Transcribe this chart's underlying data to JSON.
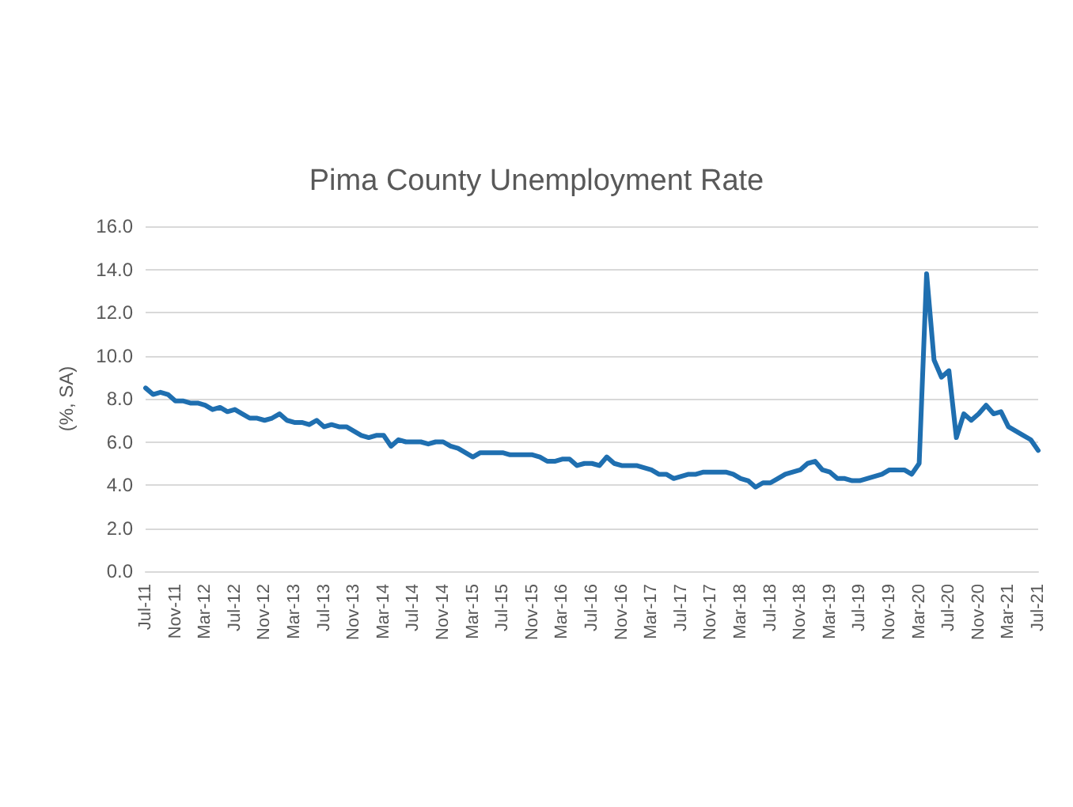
{
  "chart_data": {
    "type": "line",
    "title": "Pima County Unemployment Rate",
    "ylabel": "(%, SA)",
    "categories": [
      "Jul-11",
      null,
      null,
      null,
      "Nov-11",
      null,
      null,
      null,
      "Mar-12",
      null,
      null,
      null,
      "Jul-12",
      null,
      null,
      null,
      "Nov-12",
      null,
      null,
      null,
      "Mar-13",
      null,
      null,
      null,
      "Jul-13",
      null,
      null,
      null,
      "Nov-13",
      null,
      null,
      null,
      "Mar-14",
      null,
      null,
      null,
      "Jul-14",
      null,
      null,
      null,
      "Nov-14",
      null,
      null,
      null,
      "Mar-15",
      null,
      null,
      null,
      "Jul-15",
      null,
      null,
      null,
      "Nov-15",
      null,
      null,
      null,
      "Mar-16",
      null,
      null,
      null,
      "Jul-16",
      null,
      null,
      null,
      "Nov-16",
      null,
      null,
      null,
      "Mar-17",
      null,
      null,
      null,
      "Jul-17",
      null,
      null,
      null,
      "Nov-17",
      null,
      null,
      null,
      "Mar-18",
      null,
      null,
      null,
      "Jul-18",
      null,
      null,
      null,
      "Nov-18",
      null,
      null,
      null,
      "Mar-19",
      null,
      null,
      null,
      "Jul-19",
      null,
      null,
      null,
      "Nov-19",
      null,
      null,
      null,
      "Mar-20",
      null,
      null,
      null,
      "Jul-20",
      null,
      null,
      null,
      "Nov-20",
      null,
      null,
      null,
      "Mar-21",
      null,
      null,
      null,
      "Jul-21"
    ],
    "series": [
      {
        "color": "#1f6fb0",
        "values": [
          8.5,
          8.2,
          8.3,
          8.2,
          7.9,
          7.9,
          7.8,
          7.8,
          7.7,
          7.5,
          7.6,
          7.4,
          7.5,
          7.3,
          7.1,
          7.1,
          7.0,
          7.1,
          7.3,
          7.0,
          6.9,
          6.9,
          6.8,
          7.0,
          6.7,
          6.8,
          6.7,
          6.7,
          6.5,
          6.3,
          6.2,
          6.3,
          6.3,
          5.8,
          6.1,
          6.0,
          6.0,
          6.0,
          5.9,
          6.0,
          6.0,
          5.8,
          5.7,
          5.5,
          5.3,
          5.5,
          5.5,
          5.5,
          5.5,
          5.4,
          5.4,
          5.4,
          5.4,
          5.3,
          5.1,
          5.1,
          5.2,
          5.2,
          4.9,
          5.0,
          5.0,
          4.9,
          5.3,
          5.0,
          4.9,
          4.9,
          4.9,
          4.8,
          4.7,
          4.5,
          4.5,
          4.3,
          4.4,
          4.5,
          4.5,
          4.6,
          4.6,
          4.6,
          4.6,
          4.5,
          4.3,
          4.2,
          3.9,
          4.1,
          4.1,
          4.3,
          4.5,
          4.6,
          4.7,
          5.0,
          5.1,
          4.7,
          4.6,
          4.3,
          4.3,
          4.2,
          4.2,
          4.3,
          4.4,
          4.5,
          4.7,
          4.7,
          4.7,
          4.5,
          5.0,
          13.8,
          9.8,
          9.0,
          9.3,
          6.2,
          7.3,
          7.0,
          7.3,
          7.7,
          7.3,
          7.4,
          6.7,
          6.5,
          6.3,
          6.1,
          5.6
        ]
      }
    ],
    "ylim": [
      0,
      16
    ],
    "yticks": [
      {
        "value": 0,
        "label": "0.0"
      },
      {
        "value": 2,
        "label": "2.0"
      },
      {
        "value": 4,
        "label": "4.0"
      },
      {
        "value": 6,
        "label": "6.0"
      },
      {
        "value": 8,
        "label": "8.0"
      },
      {
        "value": 10,
        "label": "10.0"
      },
      {
        "value": 12,
        "label": "12.0"
      },
      {
        "value": 14,
        "label": "14.0"
      },
      {
        "value": 16,
        "label": "16.0"
      }
    ],
    "grid": "y",
    "marker": "none",
    "line_style": "solid"
  }
}
